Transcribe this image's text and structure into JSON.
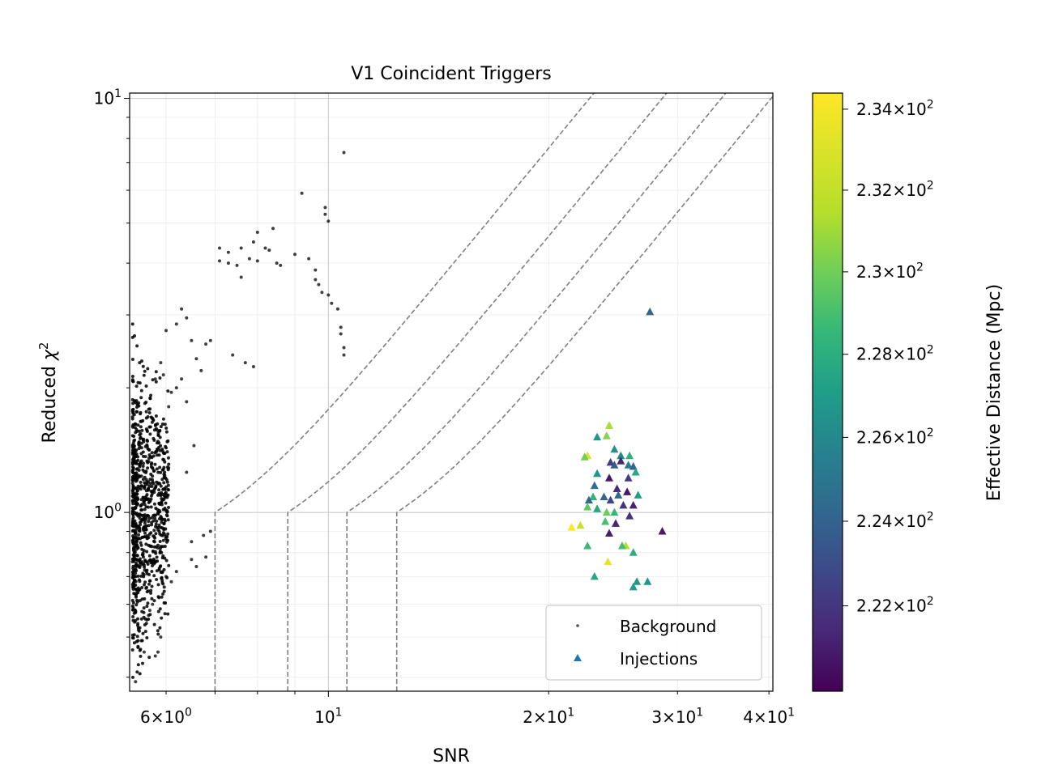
{
  "chart_data": {
    "type": "scatter",
    "title": "V1 Coincident Triggers",
    "xlabel": "SNR",
    "ylabel": "Reduced χ²",
    "xscale": "log",
    "yscale": "log",
    "xlim": [
      5.35,
      40.5
    ],
    "ylim": [
      0.37,
      10.3
    ],
    "grid": true,
    "legend_position": "lower right",
    "x_ticks": [
      {
        "value": 6,
        "mantissa": "6",
        "exp": "0"
      },
      {
        "value": 10,
        "mantissa": "",
        "exp": "1"
      },
      {
        "value": 20,
        "mantissa": "2",
        "exp": "1"
      },
      {
        "value": 30,
        "mantissa": "3",
        "exp": "1"
      },
      {
        "value": 40,
        "mantissa": "4",
        "exp": "1"
      }
    ],
    "y_ticks": [
      {
        "value": 1,
        "mantissa": "",
        "exp": "0"
      },
      {
        "value": 10,
        "mantissa": "",
        "exp": "1"
      }
    ],
    "colorbar": {
      "label": "Effective Distance (Mpc)",
      "scale": "log",
      "range": [
        220.0,
        234.4
      ],
      "colormap": "viridis",
      "ticks": [
        {
          "value": 222,
          "mantissa": "2.22"
        },
        {
          "value": 224,
          "mantissa": "2.24"
        },
        {
          "value": 226,
          "mantissa": "2.26"
        },
        {
          "value": 228,
          "mantissa": "2.28"
        },
        {
          "value": 230,
          "mantissa": "2.3"
        },
        {
          "value": 232,
          "mantissa": "2.32"
        },
        {
          "value": 234,
          "mantissa": "2.34"
        }
      ],
      "exp": "2"
    },
    "contours": {
      "style": "dashed",
      "color": "#808080",
      "snr_thresholds": [
        7.0,
        8.8,
        10.6,
        12.4
      ]
    },
    "series": [
      {
        "name": "Background",
        "marker": "dot",
        "color": "#000000",
        "points": [
          [
            10.5,
            7.4
          ],
          [
            9.2,
            5.9
          ],
          [
            9.9,
            5.45
          ],
          [
            9.9,
            5.25
          ],
          [
            10.0,
            5.05
          ],
          [
            8.0,
            4.75
          ],
          [
            8.4,
            4.85
          ],
          [
            7.1,
            4.35
          ],
          [
            7.3,
            4.25
          ],
          [
            7.6,
            4.35
          ],
          [
            7.9,
            4.5
          ],
          [
            8.2,
            4.35
          ],
          [
            8.3,
            4.3
          ],
          [
            7.1,
            4.05
          ],
          [
            7.3,
            4.0
          ],
          [
            7.5,
            3.95
          ],
          [
            7.6,
            3.7
          ],
          [
            7.8,
            4.1
          ],
          [
            8.0,
            4.05
          ],
          [
            8.5,
            4.0
          ],
          [
            8.6,
            3.95
          ],
          [
            9.0,
            4.2
          ],
          [
            9.4,
            4.1
          ],
          [
            9.6,
            3.85
          ],
          [
            9.6,
            3.65
          ],
          [
            9.7,
            3.55
          ],
          [
            9.8,
            3.4
          ],
          [
            10.0,
            3.35
          ],
          [
            10.1,
            3.2
          ],
          [
            10.3,
            3.1
          ],
          [
            10.4,
            2.8
          ],
          [
            10.4,
            2.7
          ],
          [
            10.5,
            2.5
          ],
          [
            10.5,
            2.4
          ],
          [
            7.4,
            2.4
          ],
          [
            7.7,
            2.3
          ],
          [
            7.9,
            2.25
          ],
          [
            6.8,
            2.55
          ],
          [
            6.9,
            2.6
          ],
          [
            6.5,
            2.6
          ],
          [
            6.3,
            3.1
          ],
          [
            6.4,
            2.95
          ],
          [
            6.2,
            2.85
          ],
          [
            6.0,
            2.75
          ],
          [
            6.6,
            2.35
          ],
          [
            6.7,
            2.2
          ],
          [
            6.3,
            2.1
          ],
          [
            6.2,
            2.0
          ],
          [
            6.4,
            1.85
          ],
          [
            6.1,
            1.95
          ],
          [
            5.9,
            2.3
          ],
          [
            5.95,
            2.15
          ],
          [
            6.05,
            1.8
          ],
          [
            5.8,
            2.1
          ],
          [
            6.9,
            0.9
          ],
          [
            6.75,
            0.88
          ],
          [
            6.8,
            0.78
          ],
          [
            6.6,
            0.74
          ],
          [
            6.5,
            0.77
          ],
          [
            6.5,
            0.85
          ],
          [
            6.4,
            1.25
          ],
          [
            6.55,
            1.45
          ],
          [
            6.2,
            0.72
          ],
          [
            6.1,
            0.68
          ],
          [
            6.0,
            0.7
          ],
          [
            5.45,
            0.39
          ],
          [
            5.8,
            0.45
          ],
          [
            5.85,
            0.46
          ],
          [
            5.9,
            0.5
          ],
          [
            5.6,
            0.46
          ],
          [
            5.55,
            0.49
          ],
          [
            5.5,
            0.52
          ],
          [
            5.65,
            0.55
          ],
          [
            5.75,
            0.6
          ],
          [
            5.7,
            0.58
          ]
        ]
      },
      {
        "name": "Injections",
        "marker": "triangle",
        "points": [
          [
            27.5,
            3.05,
            224.6
          ],
          [
            24.2,
            1.62,
            232.5
          ],
          [
            24.0,
            1.53,
            231.6
          ],
          [
            23.3,
            1.52,
            227.5
          ],
          [
            22.6,
            1.37,
            233.6
          ],
          [
            22.4,
            1.36,
            231.1
          ],
          [
            24.6,
            1.42,
            227.1
          ],
          [
            25.1,
            1.37,
            226.6
          ],
          [
            25.8,
            1.37,
            229.1
          ],
          [
            24.3,
            1.32,
            222.6
          ],
          [
            24.6,
            1.3,
            224.2
          ],
          [
            25.1,
            1.33,
            221.5
          ],
          [
            25.7,
            1.3,
            226.1
          ],
          [
            26.1,
            1.29,
            224.6
          ],
          [
            26.3,
            1.25,
            228.4
          ],
          [
            23.3,
            1.24,
            227.4
          ],
          [
            24.2,
            1.21,
            220.9
          ],
          [
            25.7,
            1.21,
            222.6
          ],
          [
            23.1,
            1.16,
            225.1
          ],
          [
            24.8,
            1.14,
            221.7
          ],
          [
            25.6,
            1.12,
            220.9
          ],
          [
            24.9,
            1.1,
            224.6
          ],
          [
            26.5,
            1.1,
            227.9
          ],
          [
            23.0,
            1.09,
            229.1
          ],
          [
            23.8,
            1.09,
            224.6
          ],
          [
            22.7,
            1.07,
            224.6
          ],
          [
            24.3,
            1.07,
            222.9
          ],
          [
            25.3,
            1.04,
            222.1
          ],
          [
            26.1,
            1.04,
            221.4
          ],
          [
            22.6,
            1.03,
            230.6
          ],
          [
            23.3,
            1.02,
            228.4
          ],
          [
            24.0,
            1.0,
            231.0
          ],
          [
            24.6,
            1.0,
            229.5
          ],
          [
            25.8,
            0.98,
            222.0
          ],
          [
            23.9,
            0.95,
            230.0
          ],
          [
            24.7,
            0.94,
            221.5
          ],
          [
            21.5,
            0.92,
            234.4
          ],
          [
            22.1,
            0.93,
            233.2
          ],
          [
            28.6,
            0.9,
            221.0
          ],
          [
            24.2,
            0.89,
            221.2
          ],
          [
            22.6,
            0.83,
            229.6
          ],
          [
            25.5,
            0.83,
            232.8
          ],
          [
            25.2,
            0.83,
            230.0
          ],
          [
            26.1,
            0.8,
            229.0
          ],
          [
            24.1,
            0.76,
            233.9
          ],
          [
            23.1,
            0.7,
            228.4
          ],
          [
            26.4,
            0.68,
            227.5
          ],
          [
            27.3,
            0.68,
            227.5
          ],
          [
            26.1,
            0.66,
            227.9
          ]
        ]
      }
    ]
  }
}
